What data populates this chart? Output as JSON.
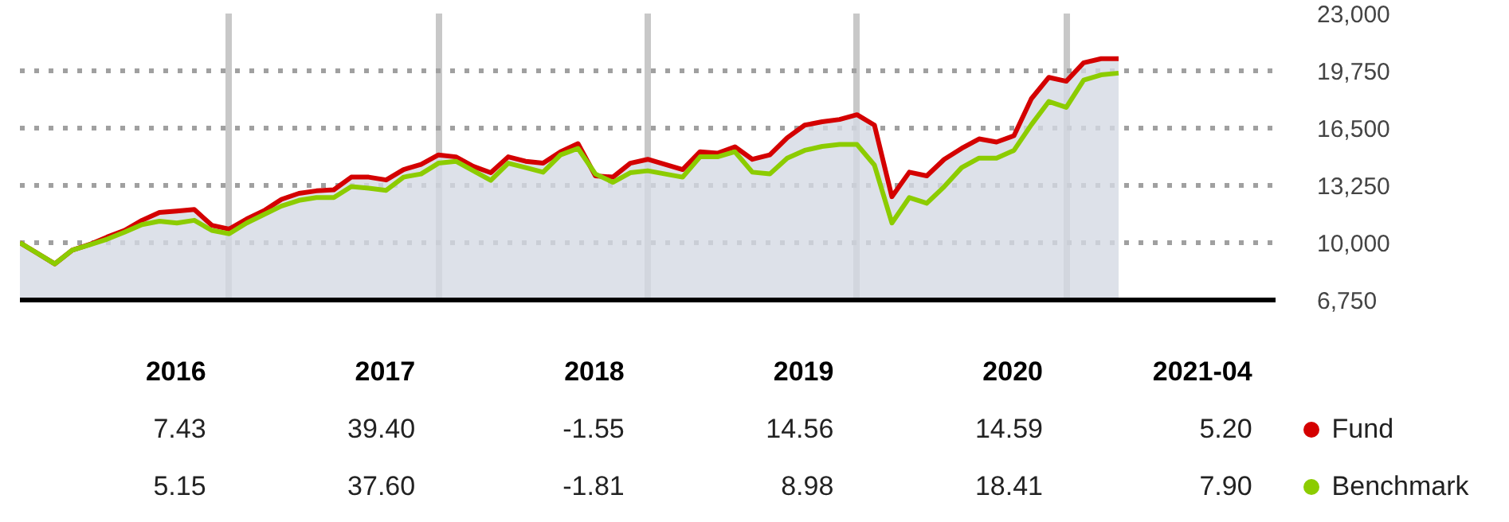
{
  "chart_data": {
    "type": "line",
    "categories": [
      null,
      null,
      null,
      null,
      null,
      null,
      null,
      null,
      null,
      null,
      null,
      null,
      null,
      null,
      null,
      null,
      null,
      null,
      null,
      null,
      null,
      null,
      null,
      null,
      null,
      null,
      null,
      null,
      null,
      null,
      null,
      null,
      null,
      null,
      null,
      null,
      null,
      null,
      null,
      null,
      null,
      null,
      null,
      null,
      null,
      null,
      null,
      null,
      null,
      null,
      null,
      null,
      null,
      null,
      null,
      null,
      null,
      null,
      null,
      null,
      null,
      null,
      null,
      null
    ],
    "ylim": [
      6750,
      23000
    ],
    "yticks": [
      {
        "value": 6750,
        "label": "6,750"
      },
      {
        "value": 10000,
        "label": "10,000"
      },
      {
        "value": 13250,
        "label": "13,250"
      },
      {
        "value": 16500,
        "label": "16,500"
      },
      {
        "value": 19750,
        "label": "19,750"
      },
      {
        "value": 23000,
        "label": "23,000"
      }
    ],
    "tick_labels": "y",
    "grid": true,
    "legend": "bottom right",
    "series": [
      {
        "name": "Fund",
        "type": "area",
        "color": "#d40000",
        "values": [
          10000,
          9400,
          8800,
          9580,
          9900,
          10320,
          10700,
          11270,
          11720,
          11790,
          11880,
          10990,
          10770,
          11340,
          11820,
          12460,
          12800,
          12940,
          13000,
          13720,
          13720,
          13560,
          14150,
          14440,
          14980,
          14870,
          14330,
          13970,
          14870,
          14620,
          14510,
          15160,
          15620,
          13790,
          13720,
          14510,
          14730,
          14440,
          14150,
          15160,
          15080,
          15440,
          14730,
          14980,
          15950,
          16670,
          16860,
          16990,
          17260,
          16670,
          12610,
          14000,
          13790,
          14730,
          15350,
          15890,
          15710,
          16070,
          18170,
          19380,
          19160,
          20210,
          20440,
          20440
        ]
      },
      {
        "name": "Benchmark",
        "color": "#8ccc00",
        "values": [
          10000,
          9400,
          8800,
          9580,
          9880,
          10200,
          10600,
          11030,
          11220,
          11120,
          11270,
          10700,
          10510,
          11120,
          11600,
          12080,
          12400,
          12560,
          12560,
          13180,
          13090,
          12970,
          13720,
          13900,
          14510,
          14620,
          14080,
          13540,
          14510,
          14260,
          14000,
          14980,
          15350,
          13900,
          13430,
          13970,
          14080,
          13900,
          13720,
          14870,
          14870,
          15160,
          14000,
          13900,
          14800,
          15240,
          15460,
          15570,
          15570,
          14400,
          11120,
          12560,
          12240,
          13180,
          14260,
          14800,
          14800,
          15240,
          16700,
          18010,
          17680,
          19230,
          19520,
          19620
        ]
      }
    ],
    "annotations": [
      "2016",
      "2017",
      "2018",
      "2019",
      "2020",
      "2021-04",
      "7.43",
      "39.40",
      "-1.55",
      "14.56",
      "14.59",
      "5.20",
      "5.15",
      "37.60",
      "-1.81",
      "8.98",
      "18.41",
      "7.90"
    ]
  }
}
